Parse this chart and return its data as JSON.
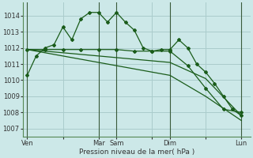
{
  "background_color": "#cce8e8",
  "grid_color": "#aacccc",
  "line_color": "#1a5c1a",
  "marker_color": "#1a5c1a",
  "xlabel": "Pression niveau de la mer( hPa )",
  "ylim": [
    1006.5,
    1014.8
  ],
  "yticks": [
    1007,
    1008,
    1009,
    1010,
    1011,
    1012,
    1013,
    1014
  ],
  "xtick_labels": [
    "Ven",
    "",
    "Mar",
    "Sam",
    "",
    "Dim",
    "",
    "Lun"
  ],
  "xtick_positions": [
    0,
    16,
    32,
    40,
    56,
    64,
    80,
    96
  ],
  "xlim": [
    -2,
    100
  ],
  "vlines": [
    0,
    32,
    40,
    64,
    96
  ],
  "series1": {
    "x": [
      0,
      4,
      8,
      12,
      16,
      20,
      24,
      28,
      32,
      36,
      40,
      44,
      48,
      52,
      56,
      60,
      64,
      68,
      72,
      76,
      80,
      84,
      88,
      92,
      96
    ],
    "y": [
      1010.3,
      1011.5,
      1012.0,
      1012.2,
      1013.3,
      1012.5,
      1013.8,
      1014.2,
      1014.2,
      1013.6,
      1014.2,
      1013.6,
      1013.1,
      1012.0,
      1011.8,
      1011.9,
      1011.9,
      1012.5,
      1012.0,
      1011.0,
      1010.5,
      1009.8,
      1009.0,
      1008.2,
      1007.8
    ]
  },
  "series2": {
    "x": [
      0,
      8,
      16,
      24,
      32,
      40,
      48,
      56,
      64,
      72,
      80,
      88,
      96
    ],
    "y": [
      1011.9,
      1011.9,
      1011.9,
      1011.9,
      1011.9,
      1011.9,
      1011.8,
      1011.8,
      1011.8,
      1010.9,
      1009.5,
      1008.2,
      1008.0
    ]
  },
  "series3": {
    "x": [
      0,
      16,
      32,
      48,
      64,
      80,
      96
    ],
    "y": [
      1011.9,
      1011.7,
      1011.5,
      1011.3,
      1011.1,
      1010.1,
      1007.8
    ]
  },
  "series4": {
    "x": [
      0,
      16,
      32,
      48,
      64,
      80,
      96
    ],
    "y": [
      1011.9,
      1011.5,
      1011.1,
      1010.7,
      1010.3,
      1009.0,
      1007.5
    ]
  }
}
